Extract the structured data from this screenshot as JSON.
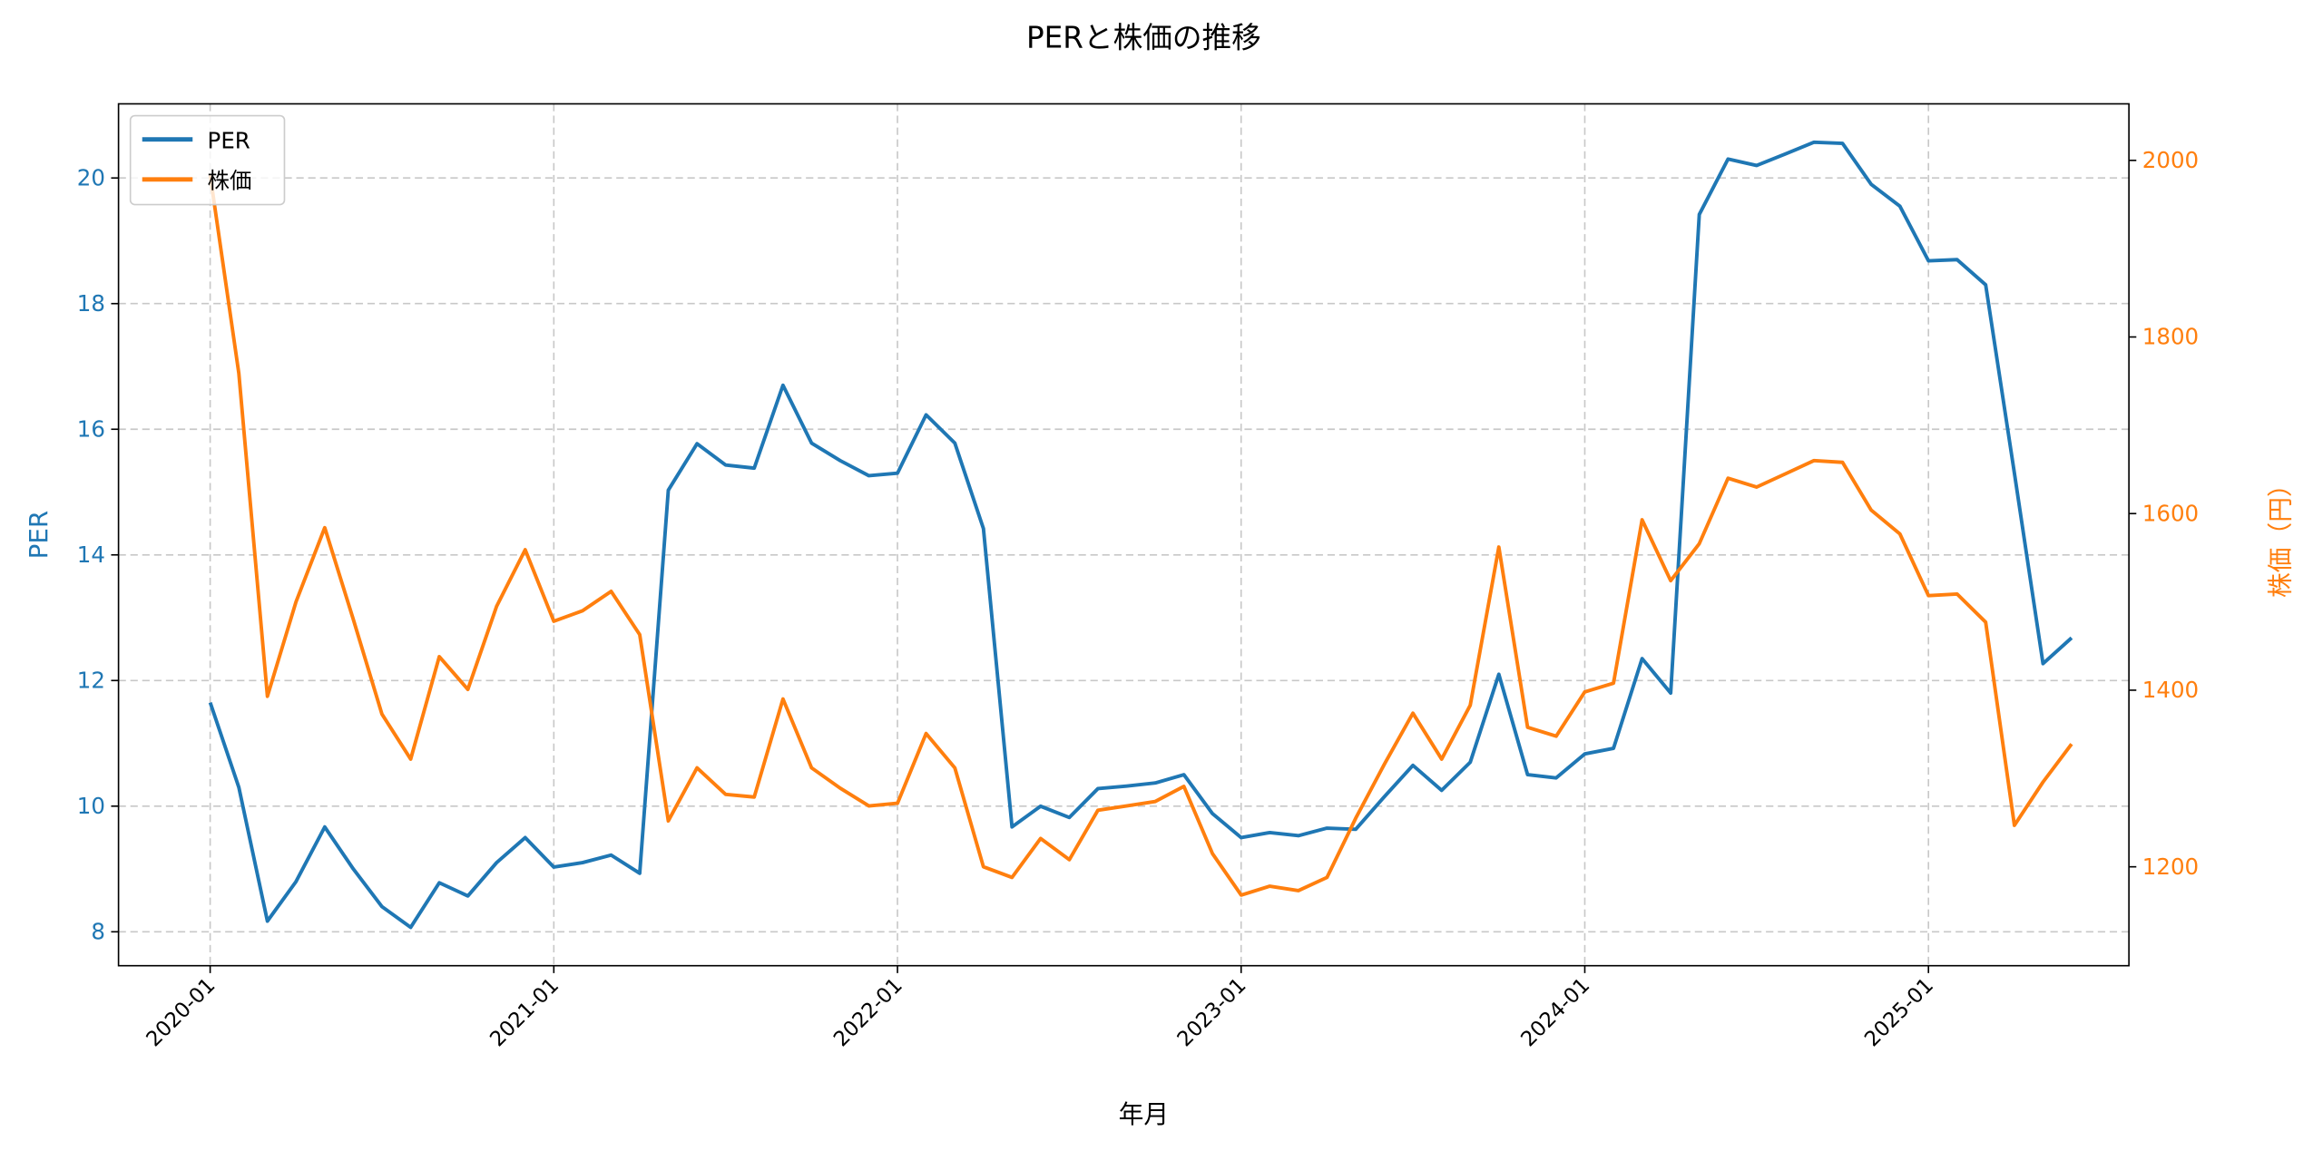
{
  "chart_data": {
    "type": "line",
    "title": "PERと株価の推移",
    "xlabel": "年月",
    "ylabel_left": "PER",
    "ylabel_right": "株価（円）",
    "x_start": "2020-01",
    "x_frequency": "monthly",
    "x_tick_labels": [
      "2020-01",
      "2021-01",
      "2022-01",
      "2023-01",
      "2024-01",
      "2025-01"
    ],
    "x_tick_index": [
      0,
      12,
      24,
      36,
      48,
      60
    ],
    "xlim_index": [
      -3.2,
      67
    ],
    "ylim_left": [
      7.46,
      21.18
    ],
    "ylim_right": [
      1088,
      2064
    ],
    "yticks_left": [
      8,
      10,
      12,
      14,
      16,
      18,
      20
    ],
    "yticks_right": [
      1200,
      1400,
      1600,
      1800,
      2000
    ],
    "grid": true,
    "legend_position": "top-left",
    "series": [
      {
        "name": "PER",
        "axis": "left",
        "color": "#1f77b4",
        "values": [
          11.65,
          10.3,
          8.17,
          8.8,
          9.67,
          9.0,
          8.4,
          8.07,
          8.78,
          8.57,
          9.1,
          9.5,
          9.03,
          9.1,
          9.22,
          8.93,
          15.03,
          15.77,
          15.43,
          15.38,
          16.7,
          15.78,
          15.5,
          15.26,
          15.3,
          16.23,
          15.78,
          14.42,
          9.67,
          10.0,
          9.82,
          10.28,
          10.32,
          10.37,
          10.5,
          9.88,
          9.5,
          9.58,
          9.53,
          9.65,
          9.63,
          10.15,
          10.65,
          10.25,
          10.7,
          12.1,
          10.5,
          10.45,
          10.83,
          10.92,
          12.35,
          11.8,
          19.42,
          20.3,
          20.2,
          20.38,
          20.57,
          20.55,
          19.9,
          19.55,
          18.68,
          18.7,
          18.3,
          15.3,
          12.27,
          12.68
        ]
      },
      {
        "name": "株価",
        "axis": "right",
        "color": "#ff7f0e",
        "values": [
          1983,
          1759,
          1393,
          1500,
          1584,
          1480,
          1373,
          1322,
          1438,
          1401,
          1495,
          1559,
          1478,
          1490,
          1512,
          1463,
          1252,
          1312,
          1282,
          1279,
          1390,
          1312,
          1289,
          1269,
          1272,
          1351,
          1312,
          1200,
          1188,
          1232,
          1208,
          1264,
          1269,
          1274,
          1291,
          1215,
          1168,
          1178,
          1173,
          1188,
          1255,
          1316,
          1374,
          1322,
          1383,
          1562,
          1358,
          1348,
          1398,
          1408,
          1593,
          1524,
          1566,
          1640,
          1630,
          1645,
          1660,
          1658,
          1604,
          1577,
          1507,
          1509,
          1477,
          1247,
          1296,
          1339
        ]
      }
    ]
  }
}
